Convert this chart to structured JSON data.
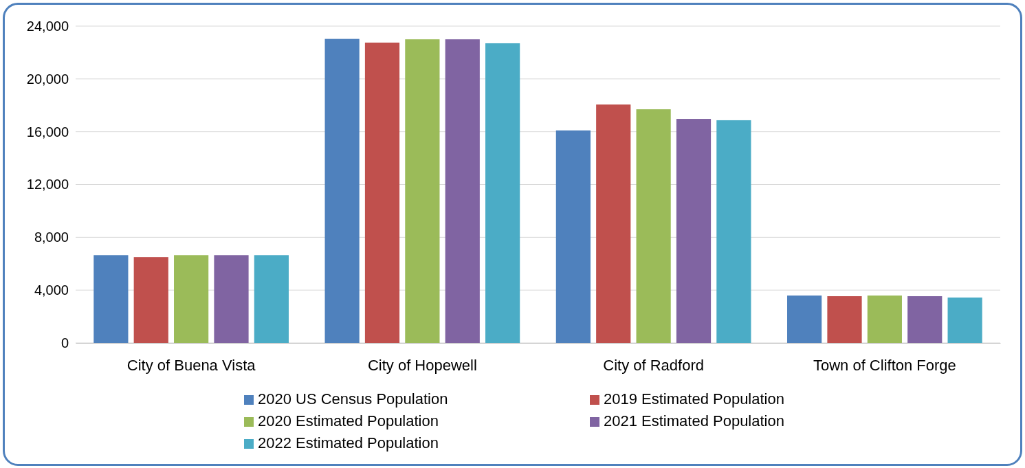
{
  "chart_data": {
    "type": "bar",
    "categories": [
      "City of Buena Vista",
      "City of Hopewell",
      "City of Radford",
      "Town of Clifton Forge"
    ],
    "series": [
      {
        "name": "2020 US Census Population",
        "color": "#4f81bd",
        "values": [
          6650,
          23030,
          16100,
          3590
        ]
      },
      {
        "name": "2019 Estimated Population",
        "color": "#c0504d",
        "values": [
          6500,
          22750,
          18060,
          3540
        ]
      },
      {
        "name": "2020 Estimated Population",
        "color": "#9bbb59",
        "values": [
          6650,
          23000,
          17700,
          3590
        ]
      },
      {
        "name": "2021 Estimated Population",
        "color": "#8064a2",
        "values": [
          6650,
          23000,
          16970,
          3540
        ]
      },
      {
        "name": "2022 Estimated Population",
        "color": "#4bacc6",
        "values": [
          6650,
          22700,
          16870,
          3440
        ]
      }
    ],
    "ylim": [
      0,
      24000
    ],
    "yticks": [
      {
        "value": 0,
        "label": "0"
      },
      {
        "value": 4000,
        "label": "4,000"
      },
      {
        "value": 8000,
        "label": "8,000"
      },
      {
        "value": 12000,
        "label": "12,000"
      },
      {
        "value": 16000,
        "label": "16,000"
      },
      {
        "value": 20000,
        "label": "20,000"
      },
      {
        "value": 24000,
        "label": "24,000"
      }
    ],
    "grid": "y",
    "legend": "bottom"
  }
}
